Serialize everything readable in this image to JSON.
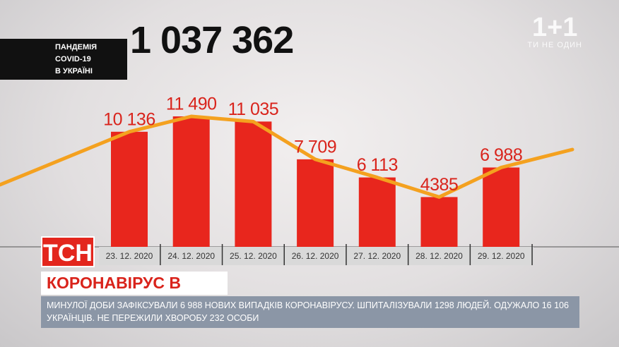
{
  "header": {
    "tag_lines": [
      "ПАНДЕМІЯ",
      "COVID-19",
      "В УКРАЇНІ"
    ],
    "total": "1 037 362"
  },
  "logo": {
    "mark": "1+1",
    "slogan": "ТИ НЕ ОДИН"
  },
  "chart_data": {
    "type": "bar",
    "categories": [
      "23. 12. 2020",
      "24. 12. 2020",
      "25. 12. 2020",
      "26. 12. 2020",
      "27. 12. 2020",
      "28. 12. 2020",
      "29. 12. 2020"
    ],
    "values": [
      10136,
      11490,
      11035,
      7709,
      6113,
      4385,
      6988
    ],
    "value_labels": [
      "10 136",
      "11 490",
      "11 035",
      "7 709",
      "6 113",
      "4385",
      "6 988"
    ],
    "color": "#e8261d",
    "line_color": "#f4a11f"
  },
  "banner": {
    "channel": "ТСН",
    "headline": "КОРОНАВІРУС В УКРАЇНІ",
    "ticker": "МИНУЛОЇ ДОБИ ЗАФІКСУВАЛИ 6 988 НОВИХ ВИПАДКІВ КОРОНАВІРУСУ. ШПИТАЛІЗУВАЛИ 1298 ЛЮДЕЙ. ОДУЖАЛО 16 106 УКРАЇНЦІВ. НЕ ПЕРЕЖИЛИ ХВОРОБУ 232 ОСОБИ"
  }
}
